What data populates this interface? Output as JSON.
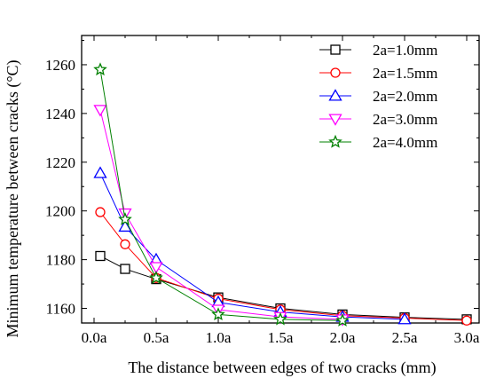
{
  "chart_data": {
    "type": "line",
    "title": "",
    "xlabel": "The distance between edges of two cracks (mm)",
    "ylabel": "Minimum temperature between cracks (°C)",
    "x_ticks": [
      {
        "value": 0.0,
        "label": "0.0a"
      },
      {
        "value": 0.5,
        "label": "0.5a"
      },
      {
        "value": 1.0,
        "label": "1.0a"
      },
      {
        "value": 1.5,
        "label": "1.5a"
      },
      {
        "value": 2.0,
        "label": "2.0a"
      },
      {
        "value": 2.5,
        "label": "2.5a"
      },
      {
        "value": 3.0,
        "label": "3.0a"
      }
    ],
    "y_ticks": [
      1160,
      1180,
      1200,
      1220,
      1240,
      1260
    ],
    "xlim": [
      -0.1,
      3.1
    ],
    "ylim": [
      1154,
      1272
    ],
    "grid": false,
    "legend_position": "top-right",
    "series": [
      {
        "name": "2a=1.0mm",
        "color": "#000000",
        "marker": "square",
        "points": [
          [
            0.05,
            1181.5
          ],
          [
            0.25,
            1176.2
          ],
          [
            0.5,
            1172.0
          ],
          [
            1.0,
            1164.5
          ],
          [
            1.5,
            1160.0
          ],
          [
            2.0,
            1157.5
          ],
          [
            2.5,
            1156.3
          ],
          [
            3.0,
            1155.5
          ]
        ]
      },
      {
        "name": "2a=1.5mm",
        "color": "#ff0000",
        "marker": "circle",
        "points": [
          [
            0.05,
            1199.5
          ],
          [
            0.25,
            1186.3
          ],
          [
            0.5,
            1172.5
          ],
          [
            1.0,
            1164.0
          ],
          [
            1.5,
            1159.5
          ],
          [
            2.0,
            1157.0
          ],
          [
            2.5,
            1156.0
          ],
          [
            3.0,
            1155.0
          ]
        ]
      },
      {
        "name": "2a=2.0mm",
        "color": "#0000ff",
        "marker": "triangle-up",
        "points": [
          [
            0.05,
            1215.5
          ],
          [
            0.25,
            1193.5
          ],
          [
            0.5,
            1180.0
          ],
          [
            1.0,
            1162.5
          ],
          [
            1.5,
            1158.5
          ],
          [
            2.0,
            1156.5
          ],
          [
            2.5,
            1155.5
          ]
        ]
      },
      {
        "name": "2a=3.0mm",
        "color": "#ff00ff",
        "marker": "triangle-down",
        "points": [
          [
            0.05,
            1241.5
          ],
          [
            0.25,
            1199.0
          ],
          [
            0.5,
            1177.0
          ],
          [
            1.0,
            1159.5
          ],
          [
            1.5,
            1156.5
          ],
          [
            2.0,
            1155.5
          ]
        ]
      },
      {
        "name": "2a=4.0mm",
        "color": "#008000",
        "marker": "star",
        "points": [
          [
            0.05,
            1258.0
          ],
          [
            0.25,
            1196.5
          ],
          [
            0.5,
            1172.5
          ],
          [
            1.0,
            1157.5
          ],
          [
            1.5,
            1155.5
          ],
          [
            2.0,
            1155.0
          ]
        ]
      }
    ]
  }
}
